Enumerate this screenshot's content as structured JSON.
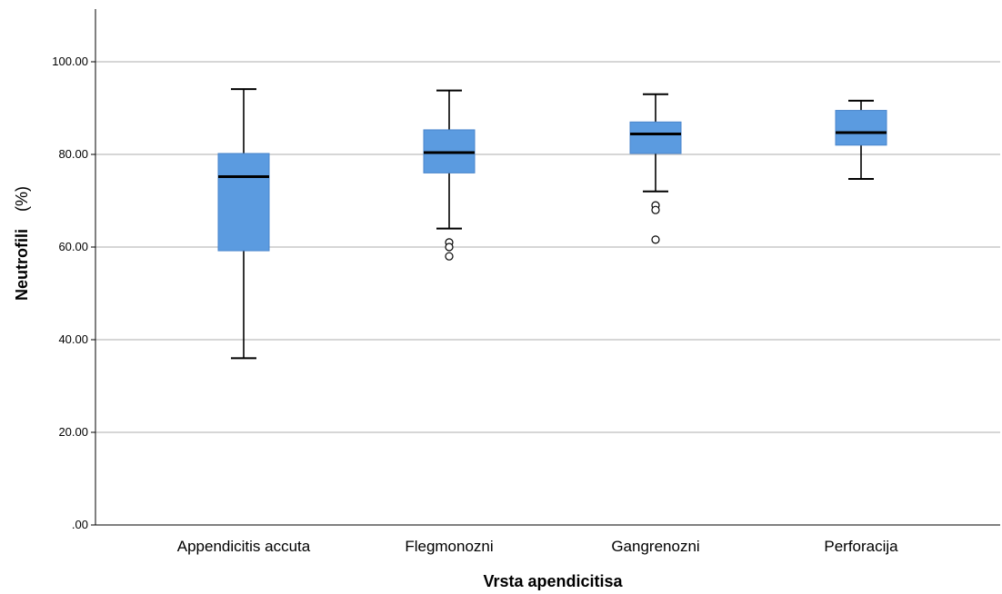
{
  "chart_data": {
    "type": "boxplot",
    "xlabel": "Vrsta apendicitisa",
    "ylabel": "Neutrofili",
    "ylabel_unit": "(%)",
    "ylim": [
      0,
      110
    ],
    "yticks": [
      0,
      20,
      40,
      60,
      80,
      100
    ],
    "ytick_labels": [
      ".00",
      "20.00",
      "40.00",
      "60.00",
      "80.00",
      "100.00"
    ],
    "grid": "horizontal",
    "box_color": "#5b9be0",
    "categories": [
      "Appendicitis accuta",
      "Flegmonozni",
      "Gangrenozni",
      "Perforacija"
    ],
    "boxes": [
      {
        "category": "Appendicitis accuta",
        "whisker_low": 36.0,
        "q1": 59.2,
        "median": 75.2,
        "q3": 80.2,
        "whisker_high": 94.1,
        "outliers": []
      },
      {
        "category": "Flegmonozni",
        "whisker_low": 64.0,
        "q1": 76.0,
        "median": 80.4,
        "q3": 85.3,
        "whisker_high": 93.8,
        "outliers": [
          61.0,
          60.0,
          58.0
        ]
      },
      {
        "category": "Gangrenozni",
        "whisker_low": 72.0,
        "q1": 80.2,
        "median": 84.4,
        "q3": 87.0,
        "whisker_high": 93.0,
        "outliers": [
          69.0,
          68.0,
          61.6
        ]
      },
      {
        "category": "Perforacija",
        "whisker_low": 74.7,
        "q1": 82.0,
        "median": 84.7,
        "q3": 89.5,
        "whisker_high": 91.6,
        "outliers": []
      }
    ]
  }
}
